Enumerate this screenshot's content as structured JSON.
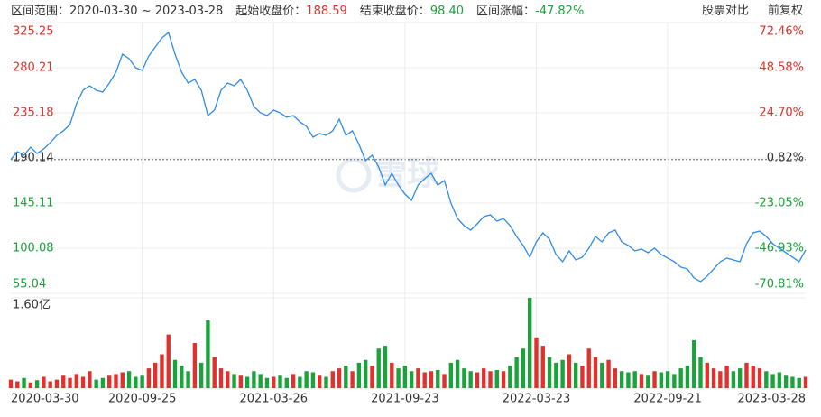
{
  "header": {
    "range_label": "区间范围：",
    "range": "2020-03-30 ~ 2023-03-28",
    "start_label": "起始收盘价：",
    "start_close": 188.59,
    "end_label": "结束收盘价：",
    "end_close": {
      "value": 98.4,
      "label": "98.40"
    },
    "change_label": "区间涨幅：",
    "change": "-47.82%",
    "compare": "股票对比",
    "adjust": "前复权",
    "watermark": "雪球"
  },
  "chart_data": {
    "type": "stock",
    "categories": [
      "2020-03-30",
      null,
      null,
      null,
      null,
      null,
      null,
      null,
      null,
      null,
      null,
      null,
      null,
      null,
      null,
      null,
      null,
      null,
      null,
      null,
      "2020-09-25",
      null,
      null,
      null,
      null,
      null,
      null,
      null,
      null,
      null,
      null,
      null,
      null,
      null,
      null,
      null,
      null,
      null,
      null,
      null,
      "2021-03-26",
      null,
      null,
      null,
      null,
      null,
      null,
      null,
      null,
      null,
      null,
      null,
      null,
      null,
      null,
      null,
      null,
      null,
      null,
      null,
      "2021-09-23",
      null,
      null,
      null,
      null,
      null,
      null,
      null,
      null,
      null,
      null,
      null,
      null,
      null,
      null,
      null,
      null,
      null,
      null,
      null,
      "2022-03-23",
      null,
      null,
      null,
      null,
      null,
      null,
      null,
      null,
      null,
      null,
      null,
      null,
      null,
      null,
      null,
      null,
      null,
      null,
      null,
      "2022-09-21",
      null,
      null,
      null,
      null,
      null,
      null,
      null,
      null,
      null,
      null,
      null,
      null,
      null,
      null,
      null,
      null,
      null,
      null,
      null,
      null,
      "2023-03-28"
    ],
    "series": [
      {
        "name": null,
        "color": "#2f8ce6",
        "values": [
          188.59,
          196.4,
          192.8,
          200.9,
          194.6,
          199.2,
          205.4,
          212.7,
          217.2,
          223.5,
          244.2,
          257.7,
          262.2,
          257.7,
          255.9,
          264.9,
          275.7,
          293.7,
          289.2,
          280.2,
          277.5,
          291.9,
          300.9,
          309.9,
          315.3,
          293.7,
          275.7,
          264.9,
          268.5,
          257.7,
          232.5,
          237.9,
          257.7,
          264.9,
          262.2,
          268.5,
          257.7,
          241.5,
          235.2,
          232.5,
          237.9,
          235.2,
          230.7,
          232.5,
          226.2,
          221.7,
          210.9,
          214.5,
          212.7,
          217.2,
          228.9,
          212.7,
          217.2,
          203.7,
          187.4,
          192.8,
          181.1,
          163.1,
          174.8,
          163.1,
          154.1,
          147.8,
          163.1,
          169.4,
          174.8,
          163.1,
          167.6,
          145.1,
          129.8,
          122.6,
          118.1,
          124.4,
          131.6,
          133.4,
          127.1,
          129.8,
          122.6,
          111.8,
          102.8,
          91.1,
          106.4,
          115.4,
          109.1,
          93.8,
          86.6,
          97.4,
          88.4,
          91.1,
          100.1,
          111.8,
          106.4,
          115.4,
          118.1,
          106.4,
          102.8,
          97.4,
          99.2,
          95.6,
          100.1,
          93.8,
          90.2,
          86.6,
          81.2,
          79.4,
          70.4,
          66.8,
          72.2,
          79.4,
          86.6,
          90.2,
          88.4,
          86.6,
          104.6,
          115.4,
          117.2,
          111.8,
          104.6,
          100.1,
          95.6,
          91.1,
          86.6,
          98.4
        ]
      }
    ],
    "volume": [
      0.15,
      0.12,
      0.18,
      0.1,
      0.14,
      0.2,
      0.12,
      0.15,
      0.22,
      0.18,
      0.25,
      0.2,
      0.3,
      0.15,
      0.18,
      0.22,
      0.25,
      0.28,
      0.3,
      0.2,
      0.22,
      0.35,
      0.45,
      0.6,
      0.95,
      0.5,
      0.4,
      0.3,
      0.8,
      0.45,
      1.2,
      0.55,
      0.35,
      0.3,
      0.25,
      0.22,
      0.2,
      0.3,
      0.25,
      0.18,
      0.2,
      0.22,
      0.18,
      0.25,
      0.2,
      0.3,
      0.28,
      0.22,
      0.2,
      0.3,
      0.35,
      0.4,
      0.3,
      0.45,
      0.5,
      0.4,
      0.7,
      0.75,
      0.45,
      0.35,
      0.4,
      0.3,
      0.35,
      0.28,
      0.3,
      0.32,
      0.25,
      0.45,
      0.5,
      0.35,
      0.3,
      0.28,
      0.35,
      0.3,
      0.32,
      0.3,
      0.4,
      0.55,
      0.7,
      1.6,
      0.9,
      0.75,
      0.55,
      0.45,
      0.5,
      0.6,
      0.45,
      0.4,
      0.7,
      0.55,
      0.45,
      0.5,
      0.35,
      0.3,
      0.28,
      0.3,
      0.25,
      0.22,
      0.3,
      0.28,
      0.3,
      0.25,
      0.35,
      0.4,
      0.85,
      0.55,
      0.45,
      0.35,
      0.3,
      0.4,
      0.3,
      0.35,
      0.45,
      0.4,
      0.35,
      0.3,
      0.25,
      0.28,
      0.22,
      0.2,
      0.18,
      0.2
    ],
    "up_color": "#e0312c",
    "down_color": "#1aa33a",
    "ylim": [
      55.04,
      325.25
    ],
    "yticks": [
      325.25,
      280.21,
      235.18,
      190.14,
      145.11,
      100.08,
      55.04
    ],
    "ytick_colors": [
      "#e0312c",
      "#e0312c",
      "#e0312c",
      "#333333",
      "#1aa33a",
      "#1aa33a",
      "#1aa33a"
    ],
    "y2lim": [
      -70.81,
      72.46
    ],
    "y2ticks": [
      {
        "value": 72.46,
        "label": "72.46%"
      },
      {
        "value": 48.58,
        "label": "48.58%"
      },
      {
        "value": 24.7,
        "label": "24.70%"
      },
      {
        "value": 0.82,
        "label": "0.82%"
      },
      {
        "value": -23.05,
        "label": "-23.05%"
      },
      {
        "value": -46.93,
        "label": "-46.93%"
      },
      {
        "value": -70.81,
        "label": "-70.81%"
      }
    ],
    "volume_ylim": [
      0,
      1.6
    ],
    "volume_yticks": [
      {
        "value": 1.6,
        "label": "1.60亿"
      }
    ],
    "grid": true
  }
}
